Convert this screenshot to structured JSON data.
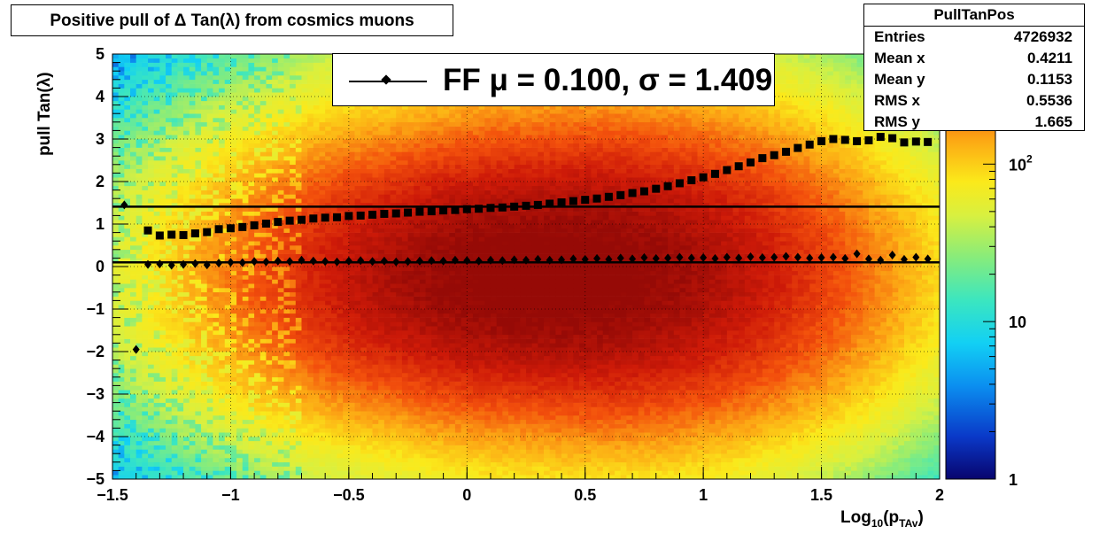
{
  "title": "Positive pull of Δ Tan(λ) from cosmics muons",
  "stats": {
    "name": "PullTanPos",
    "rows": [
      {
        "label": "Entries",
        "value": "4726932"
      },
      {
        "label": "Mean x",
        "value": "0.4211"
      },
      {
        "label": "Mean y",
        "value": "0.1153"
      },
      {
        "label": "RMS x",
        "value": "0.5536"
      },
      {
        "label": "RMS y",
        "value": "1.665"
      }
    ]
  },
  "legend": {
    "text": "FF μ =  0.100, σ =   1.409"
  },
  "chart_data": {
    "type": "heatmap",
    "title": "Positive pull of Δ Tan(λ) from cosmics muons",
    "xlabel": "Log10(pTAv)",
    "xlabel_parts": {
      "base": "Log",
      "sub1": "10",
      "mid": "(p",
      "sub2": "TAv",
      "end": ")"
    },
    "ylabel": "pull Tan(λ)",
    "xlim": [
      -1.5,
      2
    ],
    "ylim": [
      -5,
      5
    ],
    "x_ticks": [
      -1.5,
      -1,
      -0.5,
      0,
      0.5,
      1,
      1.5,
      2
    ],
    "x_tick_labels": [
      "−1.5",
      "−1",
      "−0.5",
      "0",
      "0.5",
      "1",
      "1.5",
      "2"
    ],
    "y_ticks": [
      -5,
      -4,
      -3,
      -2,
      -1,
      0,
      1,
      2,
      3,
      4,
      5
    ],
    "y_tick_labels": [
      "−5",
      "−4",
      "−3",
      "−2",
      "−1",
      "0",
      "1",
      "2",
      "3",
      "4",
      "5"
    ],
    "grid": true,
    "z_scale": "log",
    "z_range": [
      1,
      500
    ],
    "z_ticks": [
      {
        "value": 1,
        "label": "1"
      },
      {
        "value": 10,
        "label": "10"
      },
      {
        "value": 100,
        "label": "10",
        "sup": "2"
      }
    ],
    "fit_lines": [
      {
        "name": "sigma",
        "y": 1.409
      },
      {
        "name": "mu",
        "y": 0.1
      }
    ],
    "series": [
      {
        "name": "mean",
        "marker": "diamond",
        "x": [
          -1.45,
          -1.4,
          -1.35,
          -1.3,
          -1.25,
          -1.2,
          -1.15,
          -1.1,
          -1.05,
          -1.0,
          -0.95,
          -0.9,
          -0.85,
          -0.8,
          -0.75,
          -0.7,
          -0.65,
          -0.6,
          -0.55,
          -0.5,
          -0.45,
          -0.4,
          -0.35,
          -0.3,
          -0.25,
          -0.2,
          -0.15,
          -0.1,
          -0.05,
          0.0,
          0.05,
          0.1,
          0.15,
          0.2,
          0.25,
          0.3,
          0.35,
          0.4,
          0.45,
          0.5,
          0.55,
          0.6,
          0.65,
          0.7,
          0.75,
          0.8,
          0.85,
          0.9,
          0.95,
          1.0,
          1.05,
          1.1,
          1.15,
          1.2,
          1.25,
          1.3,
          1.35,
          1.4,
          1.45,
          1.5,
          1.55,
          1.6,
          1.65,
          1.7,
          1.75,
          1.8,
          1.85,
          1.9,
          1.95
        ],
        "y": [
          1.45,
          -1.95,
          0.05,
          0.06,
          0.03,
          0.05,
          0.07,
          0.04,
          0.08,
          0.1,
          0.09,
          0.12,
          0.11,
          0.13,
          0.12,
          0.15,
          0.13,
          0.12,
          0.11,
          0.13,
          0.14,
          0.12,
          0.13,
          0.11,
          0.12,
          0.13,
          0.14,
          0.13,
          0.15,
          0.14,
          0.13,
          0.15,
          0.14,
          0.16,
          0.15,
          0.17,
          0.15,
          0.16,
          0.18,
          0.17,
          0.19,
          0.17,
          0.2,
          0.18,
          0.21,
          0.19,
          0.2,
          0.22,
          0.2,
          0.21,
          0.19,
          0.22,
          0.2,
          0.23,
          0.21,
          0.22,
          0.24,
          0.22,
          0.2,
          0.21,
          0.22,
          0.19,
          0.3,
          0.18,
          0.15,
          0.27,
          0.17,
          0.22,
          0.18
        ]
      },
      {
        "name": "rms",
        "marker": "square",
        "x": [
          -1.35,
          -1.3,
          -1.25,
          -1.2,
          -1.15,
          -1.1,
          -1.05,
          -1.0,
          -0.95,
          -0.9,
          -0.85,
          -0.8,
          -0.75,
          -0.7,
          -0.65,
          -0.6,
          -0.55,
          -0.5,
          -0.45,
          -0.4,
          -0.35,
          -0.3,
          -0.25,
          -0.2,
          -0.15,
          -0.1,
          -0.05,
          0.0,
          0.05,
          0.1,
          0.15,
          0.2,
          0.25,
          0.3,
          0.35,
          0.4,
          0.45,
          0.5,
          0.55,
          0.6,
          0.65,
          0.7,
          0.75,
          0.8,
          0.85,
          0.9,
          0.95,
          1.0,
          1.05,
          1.1,
          1.15,
          1.2,
          1.25,
          1.3,
          1.35,
          1.4,
          1.45,
          1.5,
          1.55,
          1.6,
          1.65,
          1.7,
          1.75,
          1.8,
          1.85,
          1.9,
          1.95
        ],
        "y": [
          0.85,
          0.73,
          0.75,
          0.74,
          0.78,
          0.81,
          0.88,
          0.9,
          0.93,
          0.97,
          1.01,
          1.05,
          1.08,
          1.1,
          1.13,
          1.15,
          1.16,
          1.19,
          1.2,
          1.22,
          1.24,
          1.25,
          1.27,
          1.29,
          1.3,
          1.32,
          1.33,
          1.35,
          1.36,
          1.38,
          1.39,
          1.41,
          1.43,
          1.45,
          1.48,
          1.51,
          1.54,
          1.57,
          1.6,
          1.64,
          1.68,
          1.73,
          1.77,
          1.83,
          1.89,
          1.96,
          2.03,
          2.1,
          2.18,
          2.27,
          2.36,
          2.45,
          2.55,
          2.62,
          2.7,
          2.79,
          2.87,
          2.95,
          3.0,
          2.98,
          2.95,
          2.97,
          3.05,
          3.02,
          2.92,
          2.94,
          2.93
        ]
      }
    ]
  }
}
